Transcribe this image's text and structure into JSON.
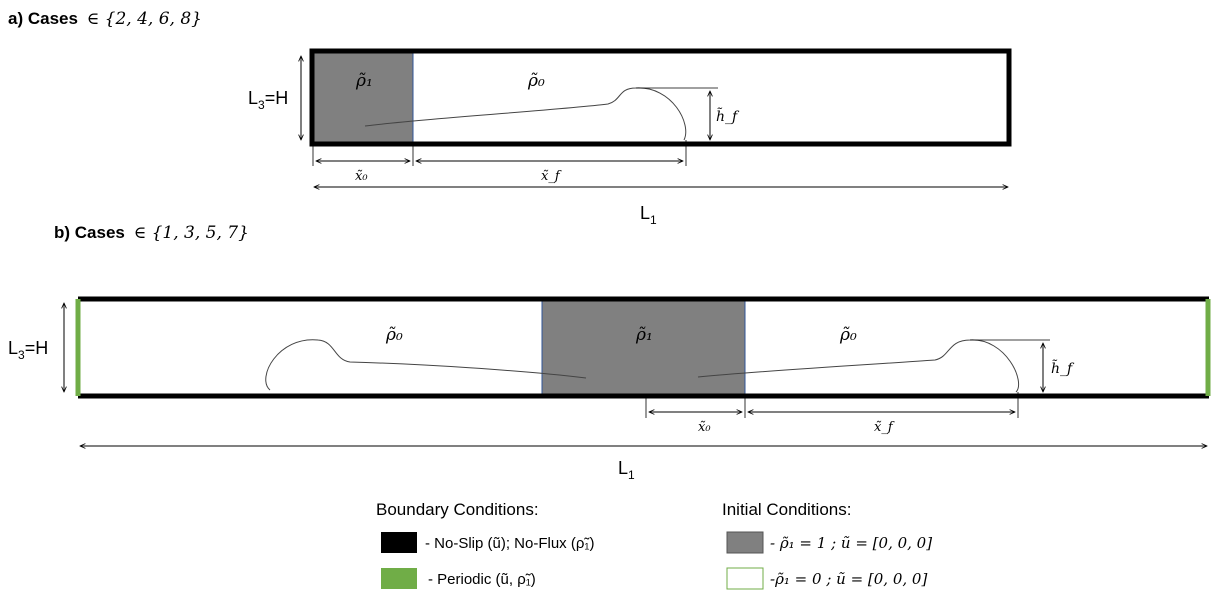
{
  "panel_a": {
    "title_prefix": "a) Cases",
    "title_set": "∈ {2, 4, 6, 8}",
    "height_label_main": "L",
    "height_label_sub": "3",
    "height_label_tail": "=H",
    "region_dense": "ρ̃₁",
    "region_light": "ρ̃₀",
    "front_height": "h̃_f",
    "x0_label": "x̃₀",
    "xf_label": "x̃_f",
    "length_main": "L",
    "length_sub": "1"
  },
  "panel_b": {
    "title_prefix": "b) Cases",
    "title_set": "∈ {1, 3, 5, 7}",
    "height_label_main": "L",
    "height_label_sub": "3",
    "height_label_tail": "=H",
    "region_dense": "ρ̃₁",
    "region_light_left": "ρ̃₀",
    "region_light_right": "ρ̃₀",
    "front_height": "h̃_f",
    "x0_label": "x̃₀",
    "xf_label": "x̃_f",
    "length_main": "L",
    "length_sub": "1"
  },
  "legend": {
    "boundary_title": "Boundary Conditions:",
    "noslip_text": "- No-Slip (ũ); No-Flux (ρ̃₁)",
    "periodic_text": "- Periodic (ũ, ρ̃₁)",
    "initial_title": "Initial Conditions:",
    "dense_text": "- ρ̃₁ = 1 ; ũ = [0, 0, 0]",
    "light_text": "-ρ̃₁ = 0 ; ũ = [0, 0, 0]"
  },
  "colors": {
    "wall": "#000000",
    "periodic": "#70ad47",
    "dense_fill": "#808080",
    "light_fill": "#ffffff",
    "divider": "#2f5597",
    "curve": "#444444"
  }
}
